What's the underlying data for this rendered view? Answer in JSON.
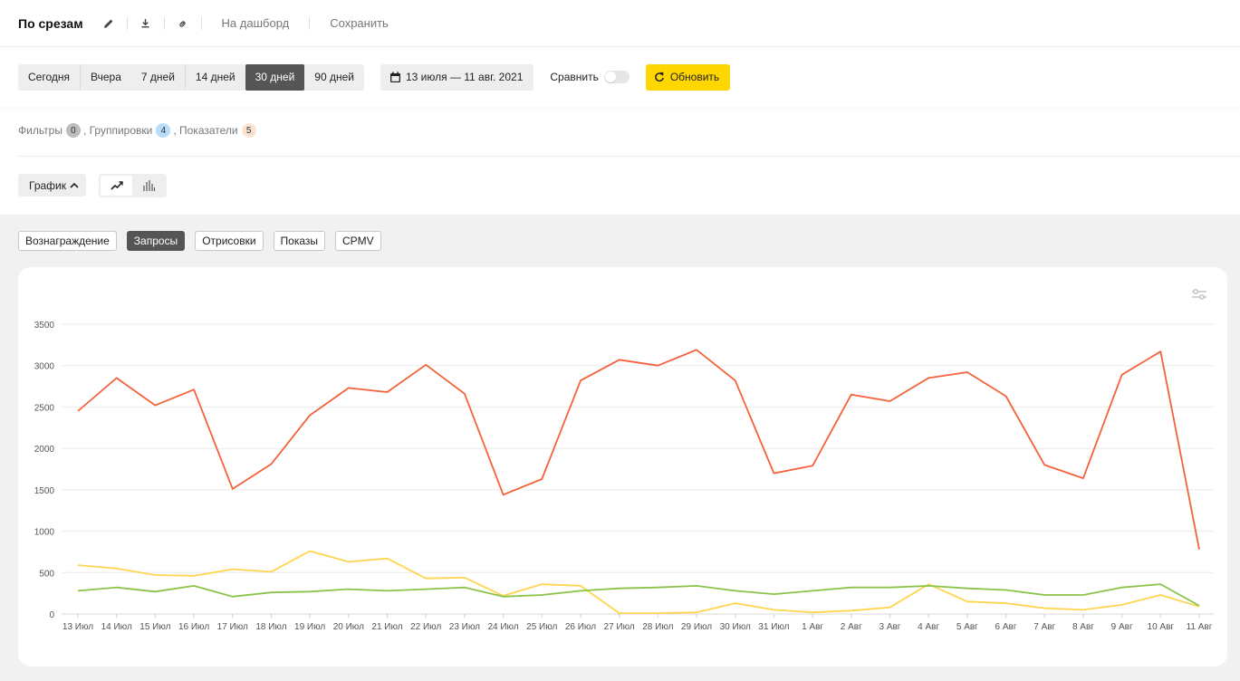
{
  "header": {
    "title": "По срезам",
    "links": {
      "dashboard": "На дашборд",
      "save": "Сохранить"
    }
  },
  "period": {
    "buttons": [
      "Сегодня",
      "Вчера",
      "7 дней",
      "14 дней",
      "30 дней",
      "90 дней"
    ],
    "active": "30 дней",
    "date_range": "13 июля — 11 авг. 2021",
    "compare_label": "Сравнить",
    "refresh_label": "Обновить"
  },
  "filters": {
    "filters_label": "Фильтры",
    "filters_count": "0",
    "groupings_label": ", Группировки",
    "groupings_count": "4",
    "metrics_label": ", Показатели",
    "metrics_count": "5"
  },
  "chart_controls": {
    "graph_label": "График"
  },
  "metric_tabs": [
    {
      "label": "Вознаграждение",
      "active": false
    },
    {
      "label": "Запросы",
      "active": true
    },
    {
      "label": "Отрисовки",
      "active": false
    },
    {
      "label": "Показы",
      "active": false
    },
    {
      "label": "CPMV",
      "active": false
    }
  ],
  "colors": {
    "accent_yellow": "#ffd600",
    "active_gray": "#555555"
  },
  "chart_data": {
    "type": "line",
    "categories": [
      "13 Июл",
      "14 Июл",
      "15 Июл",
      "16 Июл",
      "17 Июл",
      "18 Июл",
      "19 Июл",
      "20 Июл",
      "21 Июл",
      "22 Июл",
      "23 Июл",
      "24 Июл",
      "25 Июл",
      "26 Июл",
      "27 Июл",
      "28 Июл",
      "29 Июл",
      "30 Июл",
      "31 Июл",
      "1 Авг",
      "2 Авг",
      "3 Авг",
      "4 Авг",
      "5 Авг",
      "6 Авг",
      "7 Авг",
      "8 Авг",
      "9 Авг",
      "10 Авг",
      "11 Авг"
    ],
    "yticks": [
      0,
      500,
      1000,
      1500,
      2000,
      2500,
      3000,
      3500
    ],
    "ylim": [
      0,
      3500
    ],
    "grid": true,
    "series": [
      {
        "color": "#f4623a",
        "values": [
          2450,
          2850,
          2520,
          2710,
          1510,
          1810,
          2400,
          2730,
          2680,
          3010,
          2660,
          1440,
          1630,
          2820,
          3070,
          3000,
          3190,
          2820,
          1700,
          1790,
          2650,
          2570,
          2850,
          2920,
          2630,
          1800,
          1640,
          2890,
          3170,
          780
        ]
      },
      {
        "color": "#ffd54f",
        "values": [
          590,
          550,
          470,
          460,
          540,
          510,
          760,
          630,
          670,
          430,
          440,
          220,
          360,
          340,
          10,
          10,
          20,
          130,
          50,
          20,
          40,
          80,
          360,
          150,
          130,
          70,
          50,
          110,
          230,
          90
        ]
      },
      {
        "color": "#8bc34a",
        "values": [
          280,
          320,
          270,
          340,
          210,
          260,
          270,
          300,
          280,
          300,
          320,
          210,
          230,
          280,
          310,
          320,
          340,
          280,
          240,
          280,
          320,
          320,
          340,
          310,
          290,
          230,
          230,
          320,
          360,
          100
        ]
      }
    ]
  }
}
